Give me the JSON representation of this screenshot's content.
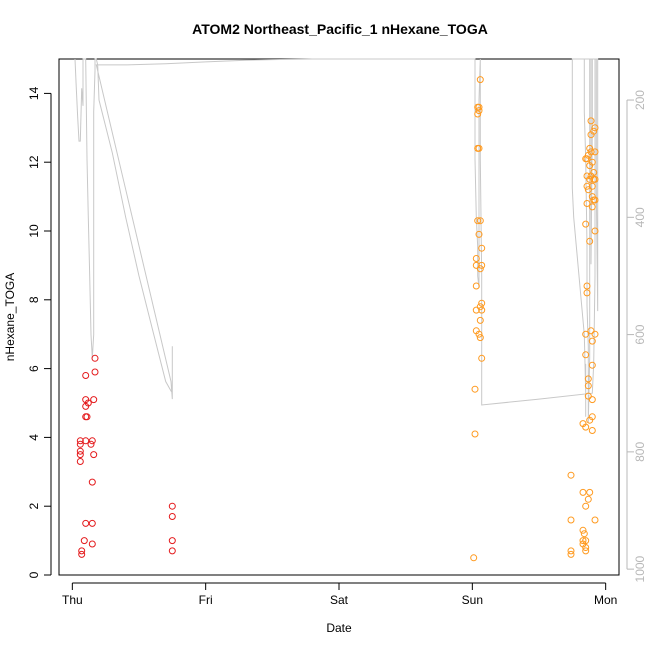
{
  "chart_data": {
    "type": "scatter",
    "title": "ATOM2 Northeast_Pacific_1 nHexane_TOGA",
    "xlabel": "Date",
    "ylabel": "nHexane_TOGA",
    "x_ticks": [
      "Thu",
      "Fri",
      "Sat",
      "Sun",
      "Mon"
    ],
    "x_range_days": [
      -0.1,
      4.1
    ],
    "ylim": [
      0,
      15
    ],
    "y_ticks": [
      0,
      2,
      4,
      6,
      8,
      10,
      12,
      14
    ],
    "y2_ticks": [
      200,
      400,
      600,
      800,
      1000
    ],
    "y2lim": [
      1010,
      130
    ],
    "grid": false,
    "series": [
      {
        "color": "#e41a1c",
        "marker": "circle-open",
        "points": [
          [
            0.06,
            3.3
          ],
          [
            0.06,
            3.5
          ],
          [
            0.06,
            3.6
          ],
          [
            0.06,
            3.8
          ],
          [
            0.06,
            3.9
          ],
          [
            0.07,
            0.6
          ],
          [
            0.07,
            0.7
          ],
          [
            0.09,
            1.0
          ],
          [
            0.1,
            1.5
          ],
          [
            0.1,
            4.6
          ],
          [
            0.1,
            4.9
          ],
          [
            0.1,
            5.1
          ],
          [
            0.1,
            5.8
          ],
          [
            0.1,
            3.9
          ],
          [
            0.11,
            4.6
          ],
          [
            0.12,
            5.0
          ],
          [
            0.14,
            3.8
          ],
          [
            0.15,
            3.9
          ],
          [
            0.15,
            0.9
          ],
          [
            0.15,
            1.5
          ],
          [
            0.15,
            2.7
          ],
          [
            0.16,
            3.5
          ],
          [
            0.16,
            5.1
          ],
          [
            0.17,
            5.9
          ],
          [
            0.17,
            6.3
          ],
          [
            0.75,
            0.7
          ],
          [
            0.75,
            1.0
          ],
          [
            0.75,
            1.7
          ],
          [
            0.75,
            2.0
          ]
        ]
      },
      {
        "color": "#ff9a1f",
        "marker": "circle-open",
        "points": [
          [
            3.01,
            0.5
          ],
          [
            3.02,
            4.1
          ],
          [
            3.02,
            5.4
          ],
          [
            3.03,
            7.1
          ],
          [
            3.03,
            7.7
          ],
          [
            3.03,
            8.4
          ],
          [
            3.03,
            9.0
          ],
          [
            3.03,
            9.2
          ],
          [
            3.04,
            10.3
          ],
          [
            3.04,
            12.4
          ],
          [
            3.04,
            13.4
          ],
          [
            3.04,
            13.6
          ],
          [
            3.05,
            7.0
          ],
          [
            3.05,
            9.9
          ],
          [
            3.05,
            12.4
          ],
          [
            3.05,
            13.5
          ],
          [
            3.05,
            13.6
          ],
          [
            3.06,
            6.9
          ],
          [
            3.06,
            7.4
          ],
          [
            3.06,
            7.8
          ],
          [
            3.06,
            8.9
          ],
          [
            3.06,
            10.3
          ],
          [
            3.06,
            14.4
          ],
          [
            3.07,
            6.3
          ],
          [
            3.07,
            7.7
          ],
          [
            3.07,
            7.9
          ],
          [
            3.07,
            9.0
          ],
          [
            3.07,
            9.5
          ],
          [
            3.74,
            0.6
          ],
          [
            3.74,
            0.7
          ],
          [
            3.74,
            1.6
          ],
          [
            3.74,
            2.9
          ],
          [
            3.83,
            0.9
          ],
          [
            3.83,
            1.0
          ],
          [
            3.83,
            1.3
          ],
          [
            3.83,
            2.4
          ],
          [
            3.83,
            4.4
          ],
          [
            3.84,
            1.2
          ],
          [
            3.85,
            0.7
          ],
          [
            3.85,
            0.8
          ],
          [
            3.85,
            1.0
          ],
          [
            3.85,
            2.0
          ],
          [
            3.85,
            4.3
          ],
          [
            3.85,
            6.4
          ],
          [
            3.85,
            7.0
          ],
          [
            3.85,
            10.2
          ],
          [
            3.85,
            12.1
          ],
          [
            3.86,
            8.4
          ],
          [
            3.86,
            8.2
          ],
          [
            3.86,
            10.8
          ],
          [
            3.86,
            11.6
          ],
          [
            3.86,
            11.3
          ],
          [
            3.86,
            12.1
          ],
          [
            3.87,
            2.2
          ],
          [
            3.87,
            5.2
          ],
          [
            3.87,
            5.5
          ],
          [
            3.87,
            5.7
          ],
          [
            3.87,
            11.2
          ],
          [
            3.87,
            12.2
          ],
          [
            3.88,
            2.4
          ],
          [
            3.88,
            4.5
          ],
          [
            3.88,
            9.7
          ],
          [
            3.88,
            11.5
          ],
          [
            3.88,
            11.9
          ],
          [
            3.88,
            12.4
          ],
          [
            3.89,
            7.1
          ],
          [
            3.89,
            11.6
          ],
          [
            3.89,
            12.3
          ],
          [
            3.89,
            12.8
          ],
          [
            3.89,
            13.2
          ],
          [
            3.9,
            4.2
          ],
          [
            3.9,
            4.6
          ],
          [
            3.9,
            5.1
          ],
          [
            3.9,
            6.1
          ],
          [
            3.9,
            6.8
          ],
          [
            3.9,
            10.7
          ],
          [
            3.9,
            11.0
          ],
          [
            3.9,
            11.3
          ],
          [
            3.9,
            12.0
          ],
          [
            3.91,
            10.9
          ],
          [
            3.91,
            11.5
          ],
          [
            3.91,
            11.7
          ],
          [
            3.91,
            12.9
          ],
          [
            3.92,
            1.6
          ],
          [
            3.92,
            7.0
          ],
          [
            3.92,
            10.0
          ],
          [
            3.92,
            10.9
          ],
          [
            3.92,
            11.5
          ],
          [
            3.92,
            12.3
          ],
          [
            3.92,
            13.0
          ]
        ]
      }
    ],
    "altitude_track": {
      "color": "#c8c8c8",
      "axis": "right",
      "points": [
        [
          0.02,
          130
        ],
        [
          0.03,
          180
        ],
        [
          0.04,
          230
        ],
        [
          0.05,
          270
        ],
        [
          0.06,
          270
        ],
        [
          0.07,
          180
        ],
        [
          0.08,
          210
        ],
        [
          0.08,
          130
        ],
        [
          0.09,
          130
        ],
        [
          0.1,
          130
        ],
        [
          0.11,
          300
        ],
        [
          0.12,
          400
        ],
        [
          0.13,
          500
        ],
        [
          0.14,
          600
        ],
        [
          0.15,
          640
        ],
        [
          0.16,
          600
        ],
        [
          0.16,
          300
        ],
        [
          0.16,
          220
        ],
        [
          0.17,
          150
        ],
        [
          0.17,
          130
        ],
        [
          0.18,
          130
        ],
        [
          0.19,
          140
        ],
        [
          0.2,
          200
        ],
        [
          0.3,
          290
        ],
        [
          0.4,
          400
        ],
        [
          0.5,
          500
        ],
        [
          0.6,
          590
        ],
        [
          0.7,
          680
        ],
        [
          0.75,
          700
        ],
        [
          0.75,
          640
        ],
        [
          0.75,
          620
        ],
        [
          0.75,
          690
        ],
        [
          0.75,
          710
        ],
        [
          0.74,
          680
        ],
        [
          0.18,
          140
        ],
        [
          0.19,
          140
        ],
        [
          0.4,
          140
        ],
        [
          0.7,
          138
        ],
        [
          1.0,
          135
        ],
        [
          1.3,
          132
        ],
        [
          1.5,
          131
        ],
        [
          1.8,
          130
        ],
        [
          2.2,
          130
        ],
        [
          2.6,
          130
        ],
        [
          3.0,
          130
        ],
        [
          3.02,
          130
        ],
        [
          3.02,
          300
        ],
        [
          3.03,
          400
        ],
        [
          3.04,
          450
        ],
        [
          3.04,
          500
        ],
        [
          3.05,
          520
        ],
        [
          3.05,
          450
        ],
        [
          3.05,
          340
        ],
        [
          3.05,
          260
        ],
        [
          3.05,
          200
        ],
        [
          3.06,
          130
        ],
        [
          3.06,
          300
        ],
        [
          3.07,
          500
        ],
        [
          3.07,
          700
        ],
        [
          3.07,
          720
        ],
        [
          3.5,
          710
        ],
        [
          3.9,
          700
        ],
        [
          3.91,
          650
        ],
        [
          3.92,
          500
        ],
        [
          3.92,
          300
        ],
        [
          3.92,
          200
        ],
        [
          3.92,
          130
        ],
        [
          3.93,
          130
        ],
        [
          3.93,
          350
        ],
        [
          3.94,
          560
        ],
        [
          3.94,
          420
        ],
        [
          3.94,
          200
        ],
        [
          3.94,
          130
        ],
        [
          3.84,
          130
        ],
        [
          3.84,
          220
        ],
        [
          3.85,
          300
        ],
        [
          3.86,
          450
        ],
        [
          3.86,
          550
        ],
        [
          3.87,
          620
        ],
        [
          3.87,
          750
        ],
        [
          3.88,
          640
        ],
        [
          3.88,
          500
        ],
        [
          3.88,
          300
        ],
        [
          3.88,
          130
        ],
        [
          3.89,
          130
        ],
        [
          3.89,
          200
        ],
        [
          3.89,
          300
        ],
        [
          3.89,
          400
        ],
        [
          3.89,
          480
        ],
        [
          3.9,
          250
        ],
        [
          3.9,
          130
        ],
        [
          3.75,
          130
        ],
        [
          3.75,
          200
        ],
        [
          3.75,
          280
        ],
        [
          3.75,
          350
        ],
        [
          3.76,
          400
        ],
        [
          3.8,
          500
        ],
        [
          3.84,
          600
        ],
        [
          3.85,
          700
        ],
        [
          3.85,
          740
        ],
        [
          3.85,
          650
        ]
      ]
    }
  }
}
